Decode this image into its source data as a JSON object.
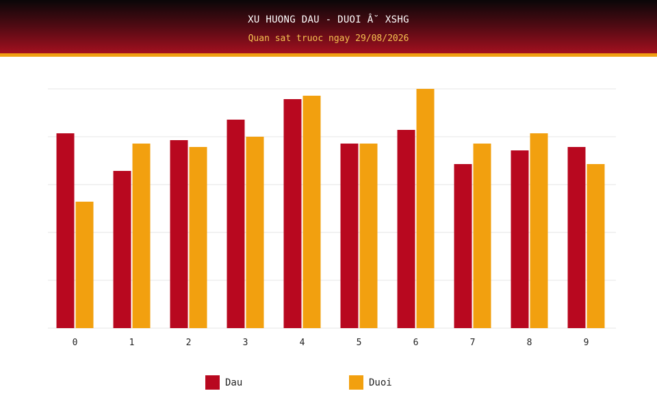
{
  "header": {
    "title": "XU HUONG DAU - DUOI Â˘ XSHG",
    "subtitle": "Quan sat truoc ngay 29/08/2026"
  },
  "colors": {
    "dau": "#b8081f",
    "duoi": "#f2a00f",
    "grid": "#e6e6e6"
  },
  "chart_data": {
    "type": "bar",
    "categories": [
      "0",
      "1",
      "2",
      "3",
      "4",
      "5",
      "6",
      "7",
      "8",
      "9"
    ],
    "series": [
      {
        "name": "Dau",
        "values": [
          57,
          46,
          55,
          61,
          67,
          54,
          58,
          48,
          52,
          53
        ]
      },
      {
        "name": "Duoi",
        "values": [
          37,
          54,
          53,
          56,
          68,
          54,
          70,
          54,
          57,
          48
        ]
      }
    ],
    "ylim": [
      0,
      70
    ],
    "grid": true,
    "legend": "bottom"
  }
}
